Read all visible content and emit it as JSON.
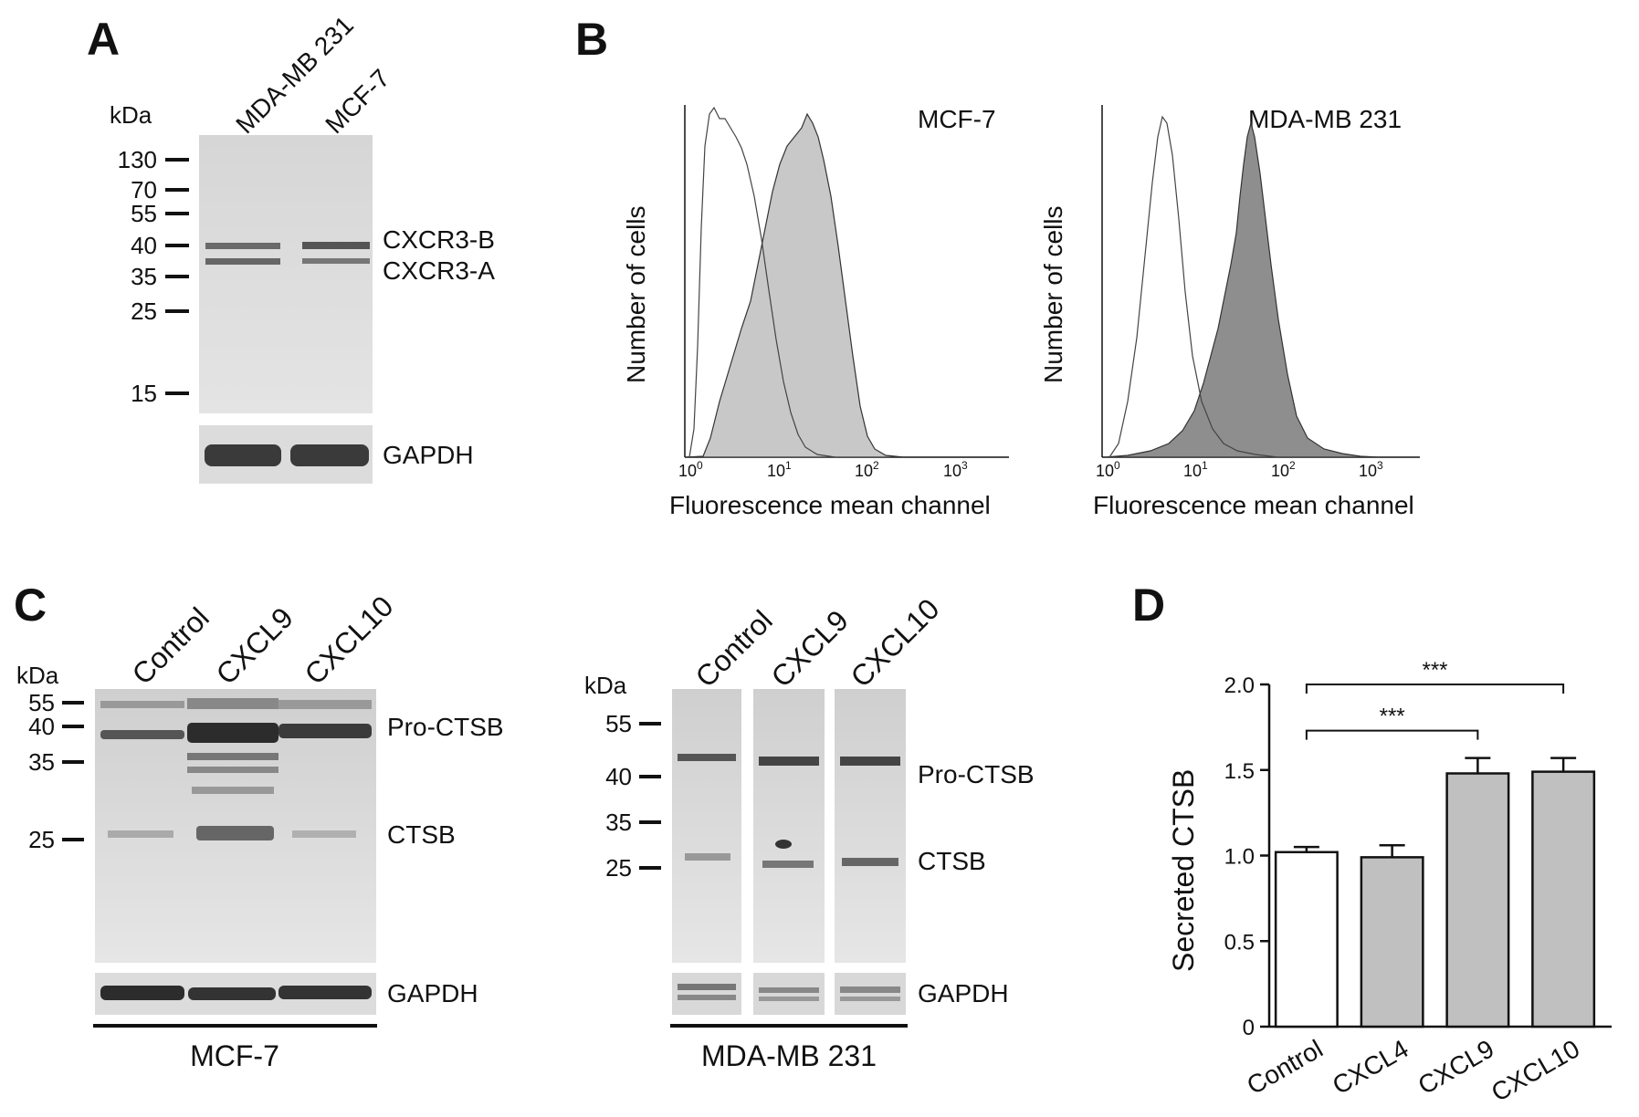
{
  "panels": {
    "A": {
      "letter": "A",
      "kda": "kDa",
      "lanes": [
        "MDA-MB 231",
        "MCF-7"
      ],
      "markers": [
        "130",
        "70",
        "55",
        "40",
        "35",
        "25",
        "15"
      ],
      "bands": [
        "CXCR3-B",
        "CXCR3-A"
      ],
      "loading": "GAPDH"
    },
    "B": {
      "letter": "B",
      "plots": [
        {
          "title": "MCF-7",
          "ylabel": "Number of cells",
          "xlabel": "Fluorescence mean channel",
          "xticks": [
            "10",
            "10",
            "10",
            "10"
          ],
          "xtick_exp": [
            "0",
            "1",
            "2",
            "3"
          ],
          "scale": "log"
        },
        {
          "title": "MDA-MB 231",
          "ylabel": "Number of cells",
          "xlabel": "Fluorescence mean channel",
          "xticks": [
            "10",
            "10",
            "10",
            "10"
          ],
          "xtick_exp": [
            "0",
            "1",
            "2",
            "3"
          ],
          "scale": "log"
        }
      ]
    },
    "C": {
      "letter": "C",
      "left": {
        "kda": "kDa",
        "lanes": [
          "Control",
          "CXCL9",
          "CXCL10"
        ],
        "markers": [
          "55",
          "40",
          "35",
          "25"
        ],
        "bands": [
          "Pro-CTSB",
          "CTSB"
        ],
        "loading": "GAPDH",
        "cell_line": "MCF-7"
      },
      "right": {
        "kda": "kDa",
        "lanes": [
          "Control",
          "CXCL9",
          "CXCL10"
        ],
        "markers": [
          "55",
          "40",
          "35",
          "25"
        ],
        "bands": [
          "Pro-CTSB",
          "CTSB"
        ],
        "loading": "GAPDH",
        "cell_line": "MDA-MB 231"
      }
    },
    "D": {
      "letter": "D",
      "significance": [
        "***",
        "***"
      ]
    }
  },
  "chart_data": {
    "type": "bar",
    "categories": [
      "Control",
      "CXCL4",
      "CXCL9",
      "CXCL10"
    ],
    "values": [
      1.02,
      0.99,
      1.48,
      1.49
    ],
    "errors": [
      0.03,
      0.07,
      0.09,
      0.08
    ],
    "fill_colors": [
      "#ffffff",
      "#c0c0c0",
      "#c0c0c0",
      "#c0c0c0"
    ],
    "ylabel": "Secreted CTSB",
    "ylim": [
      0,
      2.0
    ],
    "yticks": [
      "0",
      "0.5",
      "1.0",
      "1.5",
      "2.0"
    ],
    "ytick_values": [
      0,
      0.5,
      1.0,
      1.5,
      2.0
    ],
    "comparisons": [
      {
        "from": "Control",
        "to": "CXCL10",
        "label": "***"
      },
      {
        "from": "Control",
        "to": "CXCL9",
        "label": "***"
      }
    ]
  }
}
